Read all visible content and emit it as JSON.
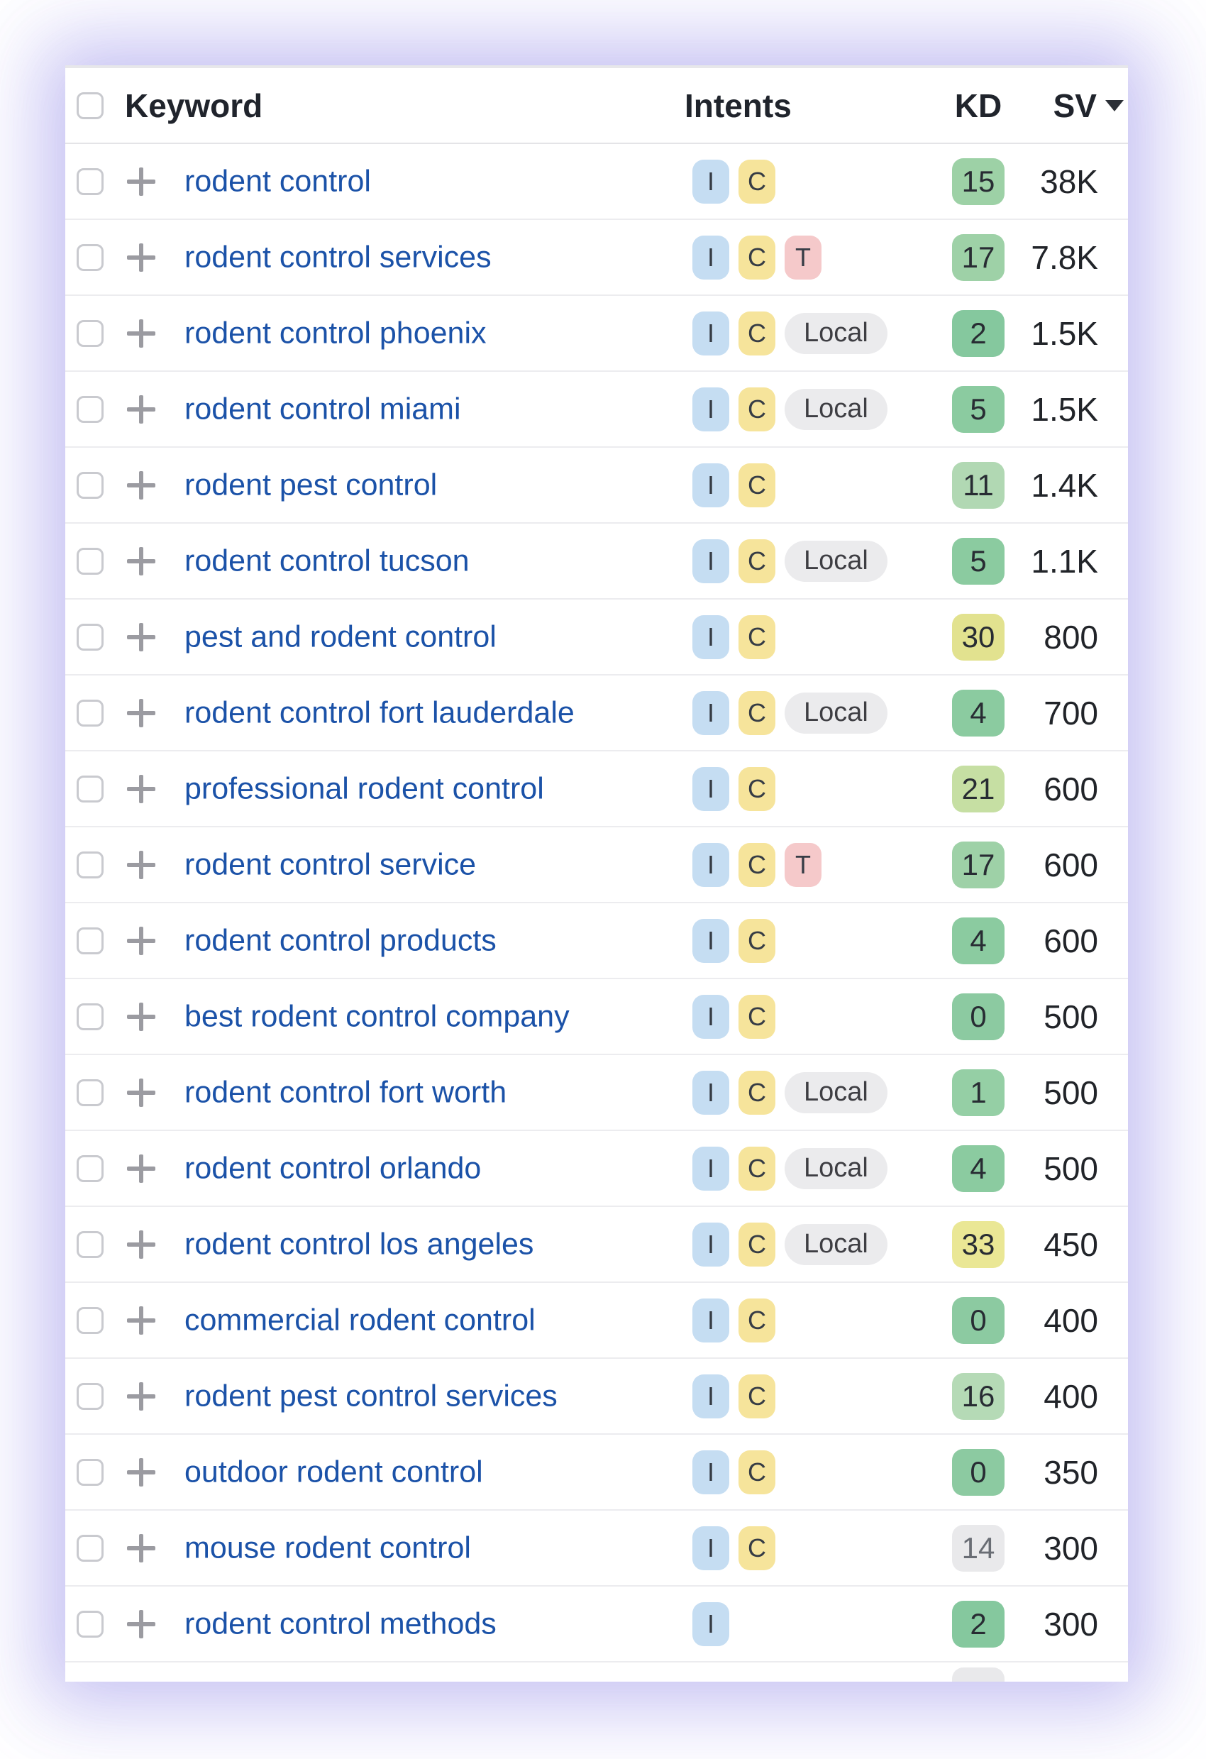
{
  "header": {
    "keyword": "Keyword",
    "intents": "Intents",
    "kd": "KD",
    "sv": "SV"
  },
  "intent_types": {
    "I": {
      "label": "I",
      "bg": "#c5ddf2"
    },
    "C": {
      "label": "C",
      "bg": "#f6e49b"
    },
    "T": {
      "label": "T",
      "bg": "#f5c9ca"
    },
    "Local": {
      "label": "Local",
      "bg": "#ebebed"
    }
  },
  "rows": [
    {
      "keyword": "rodent control",
      "intents": [
        "I",
        "C"
      ],
      "kd": "15",
      "kd_bg": "#9dd1a6",
      "sv": "38K"
    },
    {
      "keyword": "rodent control services",
      "intents": [
        "I",
        "C",
        "T"
      ],
      "kd": "17",
      "kd_bg": "#9ed1a7",
      "sv": "7.8K"
    },
    {
      "keyword": "rodent control phoenix",
      "intents": [
        "I",
        "C",
        "Local"
      ],
      "kd": "2",
      "kd_bg": "#85c89e",
      "sv": "1.5K"
    },
    {
      "keyword": "rodent control miami",
      "intents": [
        "I",
        "C",
        "Local"
      ],
      "kd": "5",
      "kd_bg": "#8bcba0",
      "sv": "1.5K"
    },
    {
      "keyword": "rodent pest control",
      "intents": [
        "I",
        "C"
      ],
      "kd": "11",
      "kd_bg": "#b1d8b3",
      "sv": "1.4K"
    },
    {
      "keyword": "rodent control tucson",
      "intents": [
        "I",
        "C",
        "Local"
      ],
      "kd": "5",
      "kd_bg": "#8bcba0",
      "sv": "1.1K"
    },
    {
      "keyword": "pest and rodent control",
      "intents": [
        "I",
        "C"
      ],
      "kd": "30",
      "kd_bg": "#e2e28f",
      "sv": "800"
    },
    {
      "keyword": "rodent control fort lauderdale",
      "intents": [
        "I",
        "C",
        "Local"
      ],
      "kd": "4",
      "kd_bg": "#8bcba0",
      "sv": "700"
    },
    {
      "keyword": "professional rodent control",
      "intents": [
        "I",
        "C"
      ],
      "kd": "21",
      "kd_bg": "#c6dfa3",
      "sv": "600"
    },
    {
      "keyword": "rodent control service",
      "intents": [
        "I",
        "C",
        "T"
      ],
      "kd": "17",
      "kd_bg": "#9ed1a7",
      "sv": "600"
    },
    {
      "keyword": "rodent control products",
      "intents": [
        "I",
        "C"
      ],
      "kd": "4",
      "kd_bg": "#8bcba0",
      "sv": "600"
    },
    {
      "keyword": "best rodent control company",
      "intents": [
        "I",
        "C"
      ],
      "kd": "0",
      "kd_bg": "#8ccaa1",
      "sv": "500"
    },
    {
      "keyword": "rodent control fort worth",
      "intents": [
        "I",
        "C",
        "Local"
      ],
      "kd": "1",
      "kd_bg": "#95cfa5",
      "sv": "500"
    },
    {
      "keyword": "rodent control orlando",
      "intents": [
        "I",
        "C",
        "Local"
      ],
      "kd": "4",
      "kd_bg": "#8bcba0",
      "sv": "500"
    },
    {
      "keyword": "rodent control los angeles",
      "intents": [
        "I",
        "C",
        "Local"
      ],
      "kd": "33",
      "kd_bg": "#eae795",
      "sv": "450"
    },
    {
      "keyword": "commercial rodent control",
      "intents": [
        "I",
        "C"
      ],
      "kd": "0",
      "kd_bg": "#8ccaa1",
      "sv": "400"
    },
    {
      "keyword": "rodent pest control services",
      "intents": [
        "I",
        "C"
      ],
      "kd": "16",
      "kd_bg": "#b5dab6",
      "sv": "400"
    },
    {
      "keyword": "outdoor rodent control",
      "intents": [
        "I",
        "C"
      ],
      "kd": "0",
      "kd_bg": "#8ccaa1",
      "sv": "350"
    },
    {
      "keyword": "mouse rodent control",
      "intents": [
        "I",
        "C"
      ],
      "kd": "14",
      "kd_bg": "#e9e9eb",
      "kd_fg": "#696d74",
      "sv": "300"
    },
    {
      "keyword": "rodent control methods",
      "intents": [
        "I"
      ],
      "kd": "2",
      "kd_bg": "#85c89e",
      "sv": "300"
    }
  ],
  "partial_row": {
    "kd_bg": "#e9e9eb"
  },
  "colors": {
    "keyword_link": "#1b52a8",
    "header_text": "#20242c",
    "row_divider": "#ececef",
    "card_glow": "#6e64e1",
    "sparkline_blue": "#3470dd",
    "sparkline_fill": "#d9e7fb",
    "checkbox_border": "#c9cacf",
    "plus_icon": "#9b9ba1"
  }
}
